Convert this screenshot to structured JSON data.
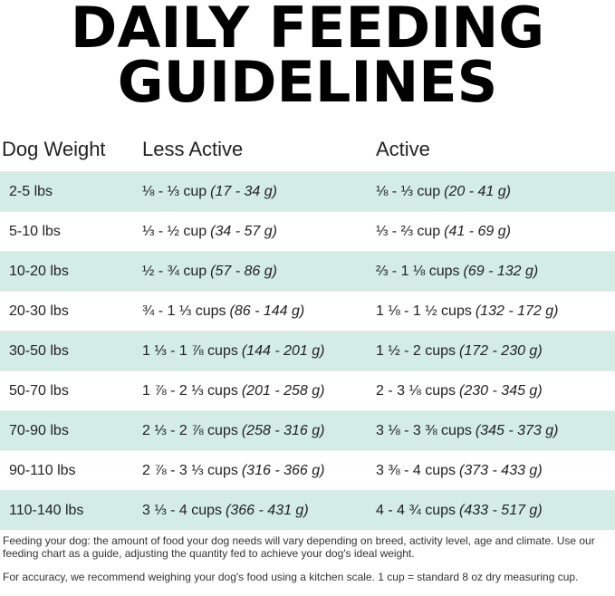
{
  "header": {
    "title_lines": [
      "DAILY FEEDING",
      "GUIDELINES"
    ]
  },
  "table": {
    "columns": [
      "Dog Weight",
      "Less Active",
      "Active"
    ],
    "rows": [
      {
        "weight": "2-5 lbs",
        "less_active": {
          "amount": "⅛ - ⅓ cup",
          "grams": "(17 - 34 g)"
        },
        "active": {
          "amount": "⅛ - ⅓ cup",
          "grams": "(20 - 41 g)"
        }
      },
      {
        "weight": "5-10 lbs",
        "less_active": {
          "amount": "⅓ - ½ cup",
          "grams": "(34 - 57 g)"
        },
        "active": {
          "amount": "⅓ - ⅔ cup",
          "grams": "(41 - 69 g)"
        }
      },
      {
        "weight": "10-20 lbs",
        "less_active": {
          "amount": "½ - ¾ cup",
          "grams": "(57 - 86 g)"
        },
        "active": {
          "amount": "⅔ - 1 ⅛ cups",
          "grams": "(69 - 132 g)"
        }
      },
      {
        "weight": "20-30 lbs",
        "less_active": {
          "amount": "¾ - 1 ⅓ cups",
          "grams": "(86 - 144 g)"
        },
        "active": {
          "amount": "1 ⅛ - 1 ½ cups",
          "grams": "(132 - 172 g)"
        }
      },
      {
        "weight": "30-50 lbs",
        "less_active": {
          "amount": "1 ⅓ - 1 ⅞ cups",
          "grams": "(144 - 201 g)"
        },
        "active": {
          "amount": "1 ½ - 2 cups",
          "grams": "(172 - 230 g)"
        }
      },
      {
        "weight": "50-70 lbs",
        "less_active": {
          "amount": "1 ⅞ - 2 ⅓ cups",
          "grams": "(201 - 258 g)"
        },
        "active": {
          "amount": "2 - 3 ⅛ cups",
          "grams": "(230 - 345 g)"
        }
      },
      {
        "weight": "70-90 lbs",
        "less_active": {
          "amount": "2 ⅓ - 2 ⅞ cups",
          "grams": "(258 - 316 g)"
        },
        "active": {
          "amount": "3 ⅛ - 3 ⅜ cups",
          "grams": "(345 - 373 g)"
        }
      },
      {
        "weight": "90-110 lbs",
        "less_active": {
          "amount": "2 ⅞ - 3 ⅓ cups",
          "grams": "(316 - 366 g)"
        },
        "active": {
          "amount": "3 ⅜ - 4 cups",
          "grams": "(373 - 433 g)"
        }
      },
      {
        "weight": "110-140 lbs",
        "less_active": {
          "amount": "3 ⅓ - 4 cups",
          "grams": "(366 - 431 g)"
        },
        "active": {
          "amount": "4 - 4 ¾ cups",
          "grams": "(433 - 517 g)"
        }
      }
    ]
  },
  "notes": [
    "Feeding your dog: the amount of food your dog needs will vary depending on breed, activity level, age and climate. Use our feeding chart as a guide, adjusting the quantity fed to achieve your dog's ideal weight.",
    "For accuracy, we recommend weighing your dog's food using a kitchen scale. 1 cup = standard 8 oz dry measuring cup."
  ]
}
